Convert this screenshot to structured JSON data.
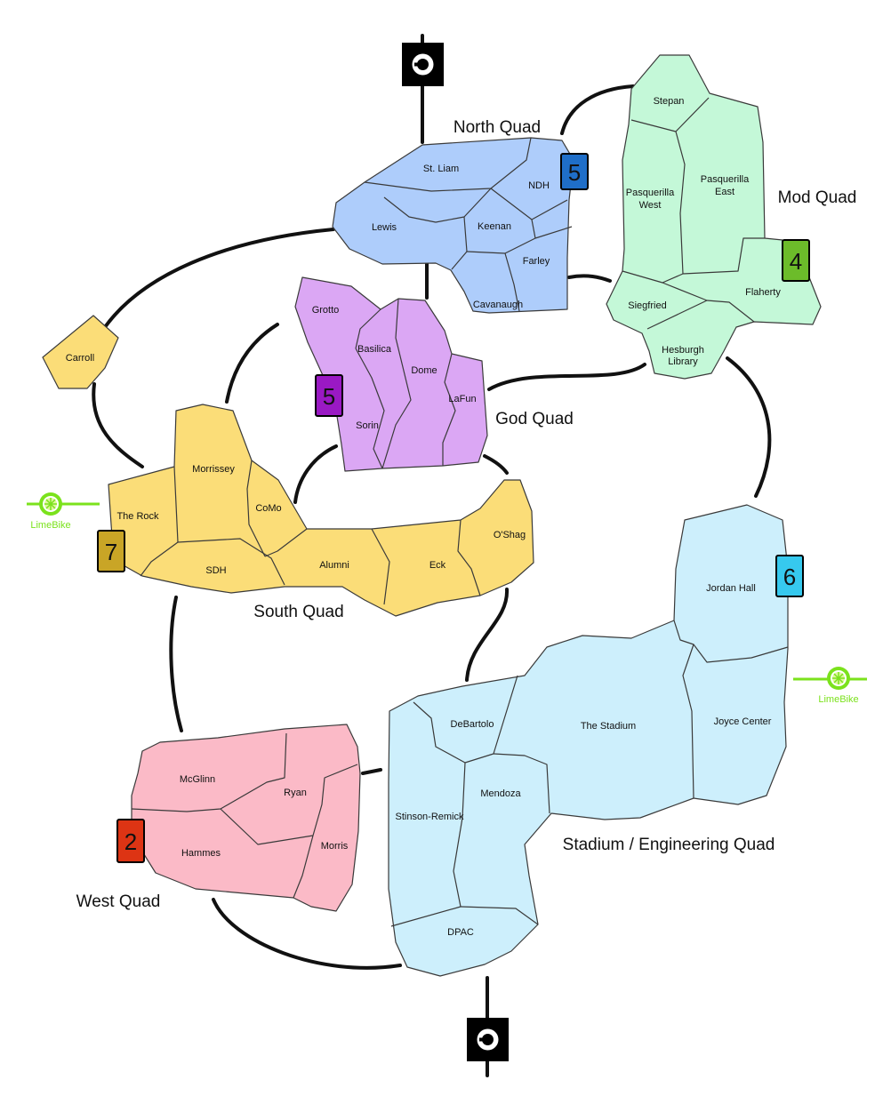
{
  "colors": {
    "north": "#aecdfb",
    "mod": "#c4f8d8",
    "god": "#dba7f4",
    "south": "#fbdd78",
    "west": "#fbbac7",
    "stadium": "#cdeffc",
    "carroll": "#fbdd78",
    "lime": "#7be21c",
    "badge_north": "#1f6ec8",
    "badge_mod": "#6cbc2a",
    "badge_god": "#9a19c4",
    "badge_south": "#c9a526",
    "badge_west": "#dd3414",
    "badge_stadium": "#36c9ee"
  },
  "quads": {
    "north": {
      "name": "North Quad",
      "bikes": "5",
      "buildings": {
        "st_liam": "St. Liam",
        "ndh": "NDH",
        "lewis": "Lewis",
        "keenan": "Keenan",
        "farley": "Farley",
        "cavanaugh": "Cavanaugh"
      }
    },
    "mod": {
      "name": "Mod Quad",
      "bikes": "4",
      "buildings": {
        "stepan": "Stepan",
        "pw1": "Pasquerilla",
        "pw2": "West",
        "pe1": "Pasquerilla",
        "pe2": "East",
        "siegfried": "Siegfried",
        "flaherty": "Flaherty",
        "hl1": "Hesburgh",
        "hl2": "Library"
      }
    },
    "god": {
      "name": "God Quad",
      "bikes": "5",
      "buildings": {
        "grotto": "Grotto",
        "basilica": "Basilica",
        "dome": "Dome",
        "lafun": "LaFun",
        "sorin": "Sorin"
      }
    },
    "south": {
      "name": "South Quad",
      "bikes": "7",
      "buildings": {
        "carroll": "Carroll",
        "morrissey": "Morrissey",
        "como": "CoMo",
        "the_rock": "The Rock",
        "sdh": "SDH",
        "alumni": "Alumni",
        "eck": "Eck",
        "oshag": "O'Shag"
      }
    },
    "west": {
      "name": "West Quad",
      "bikes": "2",
      "buildings": {
        "mcglinn": "McGlinn",
        "ryan": "Ryan",
        "hammes": "Hammes",
        "morris": "Morris"
      }
    },
    "stadium": {
      "name": "Stadium / Engineering Quad",
      "bikes": "6",
      "buildings": {
        "jordan": "Jordan Hall",
        "debartolo": "DeBartolo",
        "stadium": "The Stadium",
        "joyce": "Joyce Center",
        "mendoza": "Mendoza",
        "stinson": "Stinson-Remick",
        "dpac": "DPAC"
      }
    }
  },
  "limebike": {
    "label": "LimeBike"
  },
  "icons": [
    "uber-icon",
    "limebike-icon"
  ]
}
